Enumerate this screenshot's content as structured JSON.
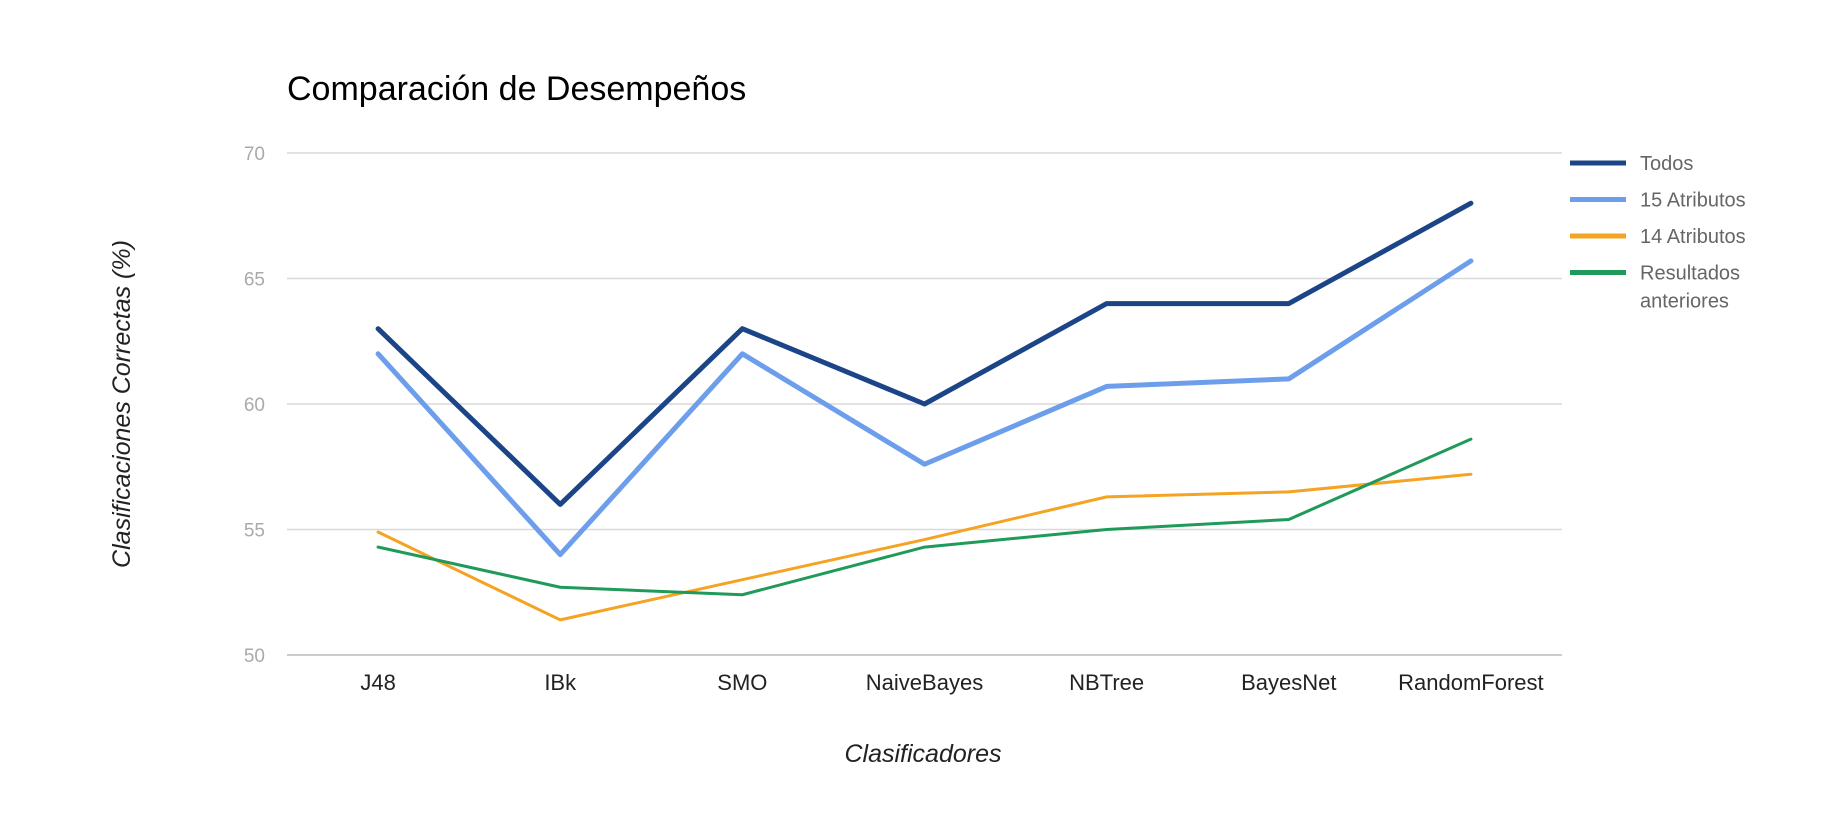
{
  "chart_data": {
    "type": "line",
    "title": "Comparación de Desempeños",
    "xlabel": "Clasificadores",
    "ylabel": "Clasificaciones Correctas (%)",
    "ylim": [
      50,
      70
    ],
    "yticks": [
      50,
      55,
      60,
      65,
      70
    ],
    "grid": true,
    "legend_position": "right",
    "categories": [
      "J48",
      "IBk",
      "SMO",
      "NaiveBayes",
      "NBTree",
      "BayesNet",
      "RandomForest"
    ],
    "series": [
      {
        "name": "Todos",
        "legend_lines": [
          "Todos"
        ],
        "color": "#1c4587",
        "width": 5,
        "values": [
          63,
          56,
          63,
          60,
          64,
          64,
          68
        ]
      },
      {
        "name": "15 Atributos",
        "legend_lines": [
          "15 Atributos"
        ],
        "color": "#6d9eeb",
        "width": 5,
        "values": [
          62,
          54,
          62,
          57.6,
          60.7,
          61,
          65.7
        ]
      },
      {
        "name": "14 Atributos",
        "legend_lines": [
          "14 Atributos"
        ],
        "color": "#f4a322",
        "width": 3,
        "values": [
          54.9,
          51.4,
          53.0,
          54.6,
          56.3,
          56.5,
          57.2
        ]
      },
      {
        "name": "Resultados anteriores",
        "legend_lines": [
          "Resultados",
          "anteriores"
        ],
        "color": "#1f9a5a",
        "width": 3,
        "values": [
          54.3,
          52.7,
          52.4,
          54.3,
          55.0,
          55.4,
          58.6
        ]
      }
    ]
  }
}
